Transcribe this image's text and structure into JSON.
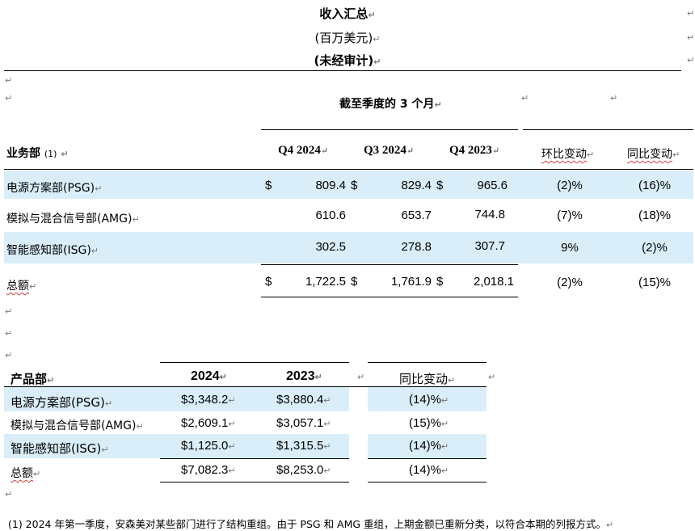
{
  "header": {
    "title": "收入汇总",
    "subtitle": "(百万美元)",
    "note": "(未经审计)"
  },
  "table1": {
    "period_caption": "截至季度的 3 个月",
    "col_segment": "业务部",
    "col_segment_footnote": "(1)",
    "col_q4_2024": "Q4 2024",
    "col_q3_2024": "Q3 2024",
    "col_q4_2023": "Q4 2023",
    "col_qoq": "环比变动",
    "col_yoy": "同比变动",
    "rows": [
      {
        "name": "电源方案部(PSG)",
        "sym1": "$",
        "q4_2024": "809.4",
        "sym2": "$",
        "q3_2024": "829.4",
        "sym3": "$",
        "q4_2023": "965.6",
        "qoq": "(2)%",
        "yoy": "(16)%"
      },
      {
        "name": "模拟与混合信号部(AMG)",
        "sym1": "",
        "q4_2024": "610.6",
        "sym2": "",
        "q3_2024": "653.7",
        "sym3": "",
        "q4_2023": "744.8",
        "qoq": "(7)%",
        "yoy": "(18)%"
      },
      {
        "name": "智能感知部(ISG)",
        "sym1": "",
        "q4_2024": "302.5",
        "sym2": "",
        "q3_2024": "278.8",
        "sym3": "",
        "q4_2023": "307.7",
        "qoq": "9%",
        "yoy": "(2)%"
      },
      {
        "name": "总额",
        "sym1": "$",
        "q4_2024": "1,722.5",
        "sym2": "$",
        "q3_2024": "1,761.9",
        "sym3": "$",
        "q4_2023": "2,018.1",
        "qoq": "(2)%",
        "yoy": "(15)%"
      }
    ]
  },
  "table2": {
    "col_product": "产品部",
    "col_2024": "2024",
    "col_2023": "2023",
    "col_yoy": "同比变动",
    "rows": [
      {
        "name": "电源方案部(PSG)",
        "y2024": "$3,348.2",
        "y2023": "$3,880.4",
        "yoy": "(14)%"
      },
      {
        "name": "模拟与混合信号部(AMG)",
        "y2024": "$2,609.1",
        "y2023": "$3,057.1",
        "yoy": "(15)%"
      },
      {
        "name": "智能感知部(ISG)",
        "y2024": "$1,125.0",
        "y2023": "$1,315.5",
        "yoy": "(14)%"
      },
      {
        "name": "总额",
        "y2024": "$7,082.3",
        "y2023": "$8,253.0",
        "yoy": "(14)%"
      }
    ]
  },
  "footnote": "(1)  2024 年第一季度，安森美对某些部门进行了结构重组。由于 PSG 和 AMG 重组，上期金额已重新分类，以符合本期的列报方式。",
  "marks": {
    "paragraph": "↵",
    "cell_end": "↵"
  }
}
